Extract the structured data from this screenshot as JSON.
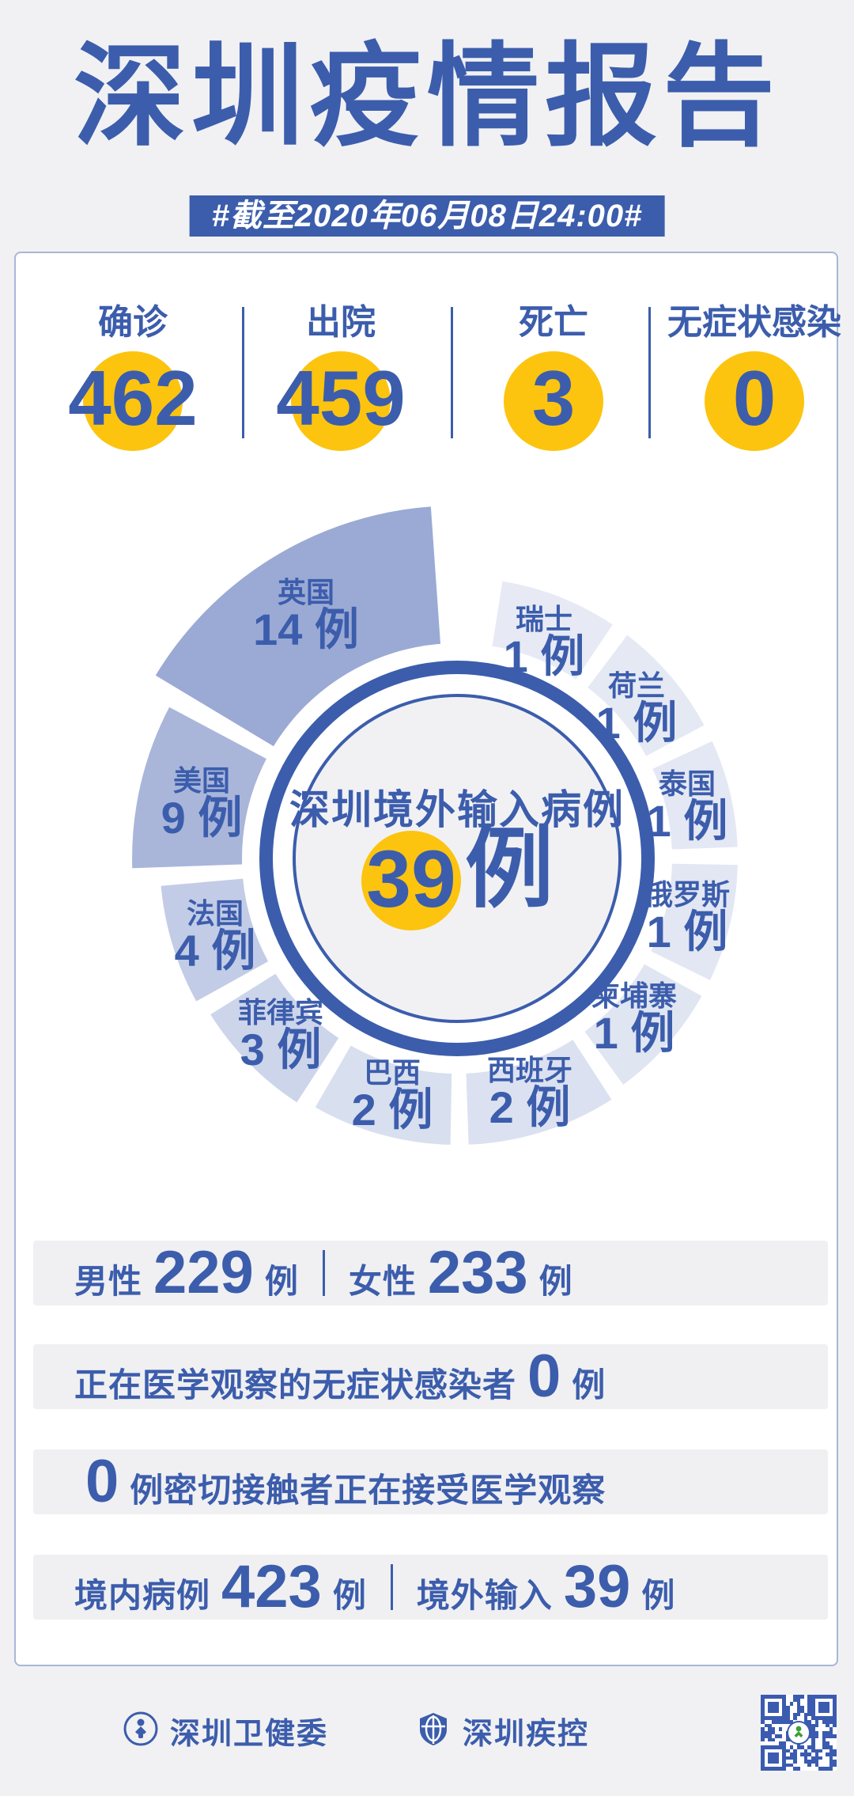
{
  "title": "深圳疫情报告",
  "date_banner": "#截至2020年06月08日24:00#",
  "colors": {
    "accent": "#3c5dac",
    "yellow": "#fcc40f",
    "page_bg": "#f1f1f3",
    "card_border": "#a9b6d8",
    "bar_bg": "#f0f0f2",
    "qr_blue": "#3b5bb0",
    "qr_center_green": "#3aa035"
  },
  "summary_stats": [
    {
      "label": "确诊",
      "value": "462"
    },
    {
      "label": "出院",
      "value": "459"
    },
    {
      "label": "死亡",
      "value": "3"
    },
    {
      "label": "无症状感染",
      "value": "0"
    }
  ],
  "chart_data": {
    "type": "pie",
    "variant": "nightingale-rose",
    "title": "深圳境外输入病例",
    "total_value": "39",
    "total_unit": "例",
    "unit": "例",
    "legend_position": "on-slice",
    "slices": [
      {
        "name": "瑞士",
        "value": 1,
        "label": "1 例",
        "color": "#e7eaf5"
      },
      {
        "name": "荷兰",
        "value": 1,
        "label": "1 例",
        "color": "#e5e9f4"
      },
      {
        "name": "泰国",
        "value": 1,
        "label": "1 例",
        "color": "#e4e8f4"
      },
      {
        "name": "俄罗斯",
        "value": 1,
        "label": "1 例",
        "color": "#e2e7f3"
      },
      {
        "name": "柬埔寨",
        "value": 1,
        "label": "1 例",
        "color": "#e0e5f2"
      },
      {
        "name": "西班牙",
        "value": 2,
        "label": "2 例",
        "color": "#dbe1f0"
      },
      {
        "name": "巴西",
        "value": 2,
        "label": "2 例",
        "color": "#d8dfee"
      },
      {
        "name": "菲律宾",
        "value": 3,
        "label": "3 例",
        "color": "#ccd5ea"
      },
      {
        "name": "法国",
        "value": 4,
        "label": "4 例",
        "color": "#c3cce6"
      },
      {
        "name": "美国",
        "value": 9,
        "label": "9 例",
        "color": "#a9b6da"
      },
      {
        "name": "英国",
        "value": 14,
        "label": "14 例",
        "color": "#9aaad4"
      }
    ]
  },
  "detail_rows": [
    {
      "parts": [
        {
          "type": "label",
          "text": "男性"
        },
        {
          "type": "num",
          "text": "229"
        },
        {
          "type": "label",
          "text": "例"
        },
        {
          "type": "divider"
        },
        {
          "type": "label",
          "text": "女性"
        },
        {
          "type": "num",
          "text": "233"
        },
        {
          "type": "label",
          "text": "例"
        }
      ]
    },
    {
      "parts": [
        {
          "type": "label",
          "text": "正在医学观察的无症状感染者"
        },
        {
          "type": "num",
          "text": "0"
        },
        {
          "type": "label",
          "text": "例"
        }
      ]
    },
    {
      "parts": [
        {
          "type": "num",
          "text": "0"
        },
        {
          "type": "label",
          "text": "例密切接触者正在接受医学观察"
        }
      ]
    },
    {
      "parts": [
        {
          "type": "label",
          "text": "境内病例"
        },
        {
          "type": "num",
          "text": "423"
        },
        {
          "type": "label",
          "text": "例"
        },
        {
          "type": "divider"
        },
        {
          "type": "label",
          "text": "境外输入"
        },
        {
          "type": "num",
          "text": "39"
        },
        {
          "type": "label",
          "text": "例"
        }
      ]
    }
  ],
  "footer": {
    "org1": {
      "name": "深圳卫健委"
    },
    "org2": {
      "name": "深圳疾控"
    }
  }
}
